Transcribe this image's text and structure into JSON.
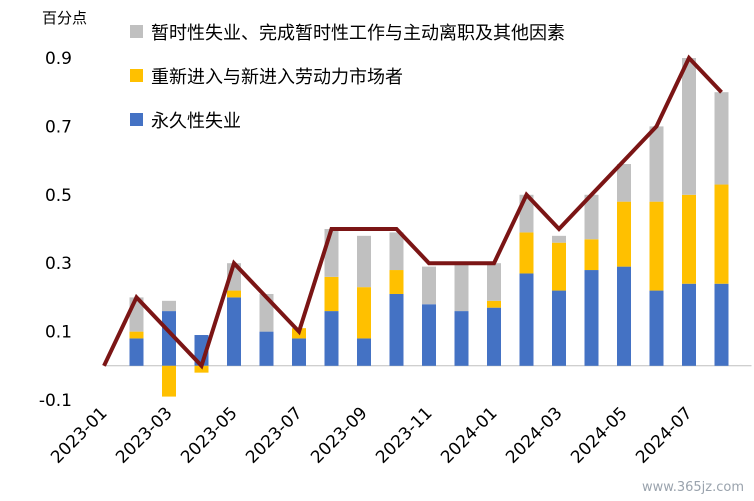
{
  "chart_data": {
    "type": "bar",
    "stacked": true,
    "unit_label": "百分点",
    "x": [
      "2023-01",
      "2023-02",
      "2023-03",
      "2023-04",
      "2023-05",
      "2023-06",
      "2023-07",
      "2023-08",
      "2023-09",
      "2023-10",
      "2023-11",
      "2023-12",
      "2024-01",
      "2024-02",
      "2024-03",
      "2024-04",
      "2024-05",
      "2024-06",
      "2024-07",
      "2024-08"
    ],
    "x_tick_labels": [
      "2023-01",
      "2023-03",
      "2023-05",
      "2023-07",
      "2023-09",
      "2023-11",
      "2024-01",
      "2024-03",
      "2024-05",
      "2024-07"
    ],
    "y_ticks": [
      -0.1,
      0.1,
      0.3,
      0.5,
      0.7,
      0.9
    ],
    "ylim": [
      -0.1,
      0.9
    ],
    "series": [
      {
        "name": "暂时性失业、完成暂时性工作与主动离职及其他因素",
        "color": "#c0c0c0",
        "values": [
          null,
          0.1,
          0.03,
          0.0,
          0.08,
          0.11,
          0.0,
          0.14,
          0.15,
          0.11,
          0.11,
          0.14,
          0.11,
          0.11,
          0.02,
          0.13,
          0.11,
          0.22,
          0.4,
          0.27
        ]
      },
      {
        "name": "重新进入与新进入劳动力市场者",
        "color": "#ffc000",
        "values": [
          null,
          0.02,
          -0.09,
          -0.02,
          0.02,
          0.0,
          0.03,
          0.1,
          0.15,
          0.07,
          0.0,
          0.0,
          0.02,
          0.12,
          0.14,
          0.09,
          0.19,
          0.26,
          0.26,
          0.29
        ]
      },
      {
        "name": "永久性失业",
        "color": "#4472c4",
        "values": [
          null,
          0.08,
          0.16,
          0.09,
          0.2,
          0.1,
          0.08,
          0.16,
          0.08,
          0.21,
          0.18,
          0.16,
          0.17,
          0.27,
          0.22,
          0.28,
          0.29,
          0.22,
          0.24,
          0.24
        ]
      }
    ],
    "total_line": {
      "name": "",
      "color": "#7b1515",
      "values": [
        0.0,
        0.2,
        0.1,
        0.0,
        0.3,
        0.2,
        0.1,
        0.4,
        0.4,
        0.4,
        0.3,
        0.3,
        0.3,
        0.5,
        0.4,
        0.5,
        0.6,
        0.7,
        0.9,
        0.8
      ]
    },
    "legend_position": "top-left",
    "grid": false
  },
  "watermark": "www.365jz.com"
}
